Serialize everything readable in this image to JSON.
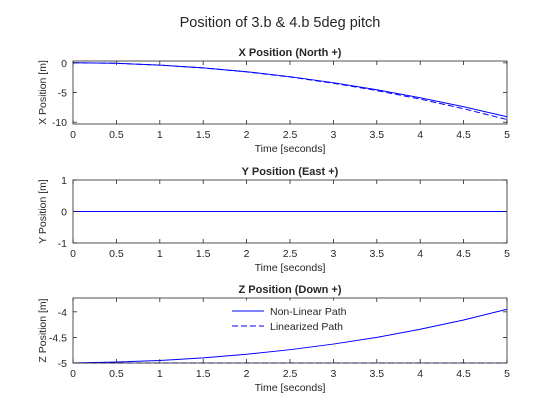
{
  "figure_title": "Position of 3.b & 4.b 5deg pitch",
  "chart_data": [
    {
      "type": "line",
      "title": "X Position (North +)",
      "xlabel": "Time [seconds]",
      "ylabel": "X Position [m]",
      "xlim": [
        0,
        5
      ],
      "ylim": [
        -10.3,
        0.3
      ],
      "xticks": [
        0,
        0.5,
        1,
        1.5,
        2,
        2.5,
        3,
        3.5,
        4,
        4.5,
        5
      ],
      "xticklabels": [
        "0",
        "0.5",
        "1",
        "1.5",
        "2",
        "2.5",
        "3",
        "3.5",
        "4",
        "4.5",
        "5"
      ],
      "yticks": [
        0,
        -5,
        -10
      ],
      "yticklabels": [
        "0",
        "-5",
        "-10"
      ],
      "grid": false,
      "legend": false,
      "series": [
        {
          "name": "Non-Linear Path",
          "style": "solid",
          "x": [
            0,
            0.5,
            1,
            1.5,
            2,
            2.5,
            3,
            3.5,
            4,
            4.5,
            5
          ],
          "y": [
            0,
            -0.08,
            -0.39,
            -0.85,
            -1.5,
            -2.34,
            -3.35,
            -4.53,
            -5.88,
            -7.4,
            -9.08
          ]
        },
        {
          "name": "Linearized Path",
          "style": "dashed",
          "x": [
            0,
            0.5,
            1,
            1.5,
            2,
            2.5,
            3,
            3.5,
            4,
            4.5,
            5
          ],
          "y": [
            0,
            -0.08,
            -0.39,
            -0.86,
            -1.53,
            -2.39,
            -3.44,
            -4.68,
            -6.11,
            -7.73,
            -9.55
          ]
        }
      ]
    },
    {
      "type": "line",
      "title": "Y Position (East +)",
      "xlabel": "Time [seconds]",
      "ylabel": "Y Position [m]",
      "xlim": [
        0,
        5
      ],
      "ylim": [
        -1,
        1
      ],
      "xticks": [
        0,
        0.5,
        1,
        1.5,
        2,
        2.5,
        3,
        3.5,
        4,
        4.5,
        5
      ],
      "xticklabels": [
        "0",
        "0.5",
        "1",
        "1.5",
        "2",
        "2.5",
        "3",
        "3.5",
        "4",
        "4.5",
        "5"
      ],
      "yticks": [
        1,
        0,
        -1
      ],
      "yticklabels": [
        "1",
        "0",
        "-1"
      ],
      "grid": false,
      "legend": false,
      "series": [
        {
          "name": "Non-Linear Path",
          "style": "solid",
          "x": [
            0,
            5
          ],
          "y": [
            0,
            0
          ]
        },
        {
          "name": "Linearized Path",
          "style": "dashed",
          "x": [
            0,
            5
          ],
          "y": [
            0,
            0
          ]
        }
      ]
    },
    {
      "type": "line",
      "title": "Z Position (Down +)",
      "xlabel": "Time [seconds]",
      "ylabel": "Z Position [m]",
      "xlim": [
        0,
        5
      ],
      "ylim": [
        -5,
        -3.73
      ],
      "xticks": [
        0,
        0.5,
        1,
        1.5,
        2,
        2.5,
        3,
        3.5,
        4,
        4.5,
        5
      ],
      "xticklabels": [
        "0",
        "0.5",
        "1",
        "1.5",
        "2",
        "2.5",
        "3",
        "3.5",
        "4",
        "4.5",
        "5"
      ],
      "yticks": [
        -4,
        -4.5,
        -5
      ],
      "yticklabels": [
        "-4",
        "-4.5",
        "-5"
      ],
      "grid": false,
      "legend": true,
      "legend_location": "top-center",
      "series": [
        {
          "name": "Non-Linear Path",
          "style": "solid",
          "x": [
            0,
            0.5,
            1,
            1.5,
            2,
            2.5,
            3,
            3.5,
            4,
            4.5,
            5
          ],
          "y": [
            -5,
            -4.98,
            -4.95,
            -4.9,
            -4.83,
            -4.74,
            -4.63,
            -4.5,
            -4.34,
            -4.16,
            -3.95
          ]
        },
        {
          "name": "Linearized Path",
          "style": "dashed",
          "x": [
            0,
            5
          ],
          "y": [
            -5,
            -5
          ]
        }
      ]
    }
  ],
  "colors": {
    "line": "#0000ff",
    "axes": "#262626",
    "background": "#ffffff"
  }
}
